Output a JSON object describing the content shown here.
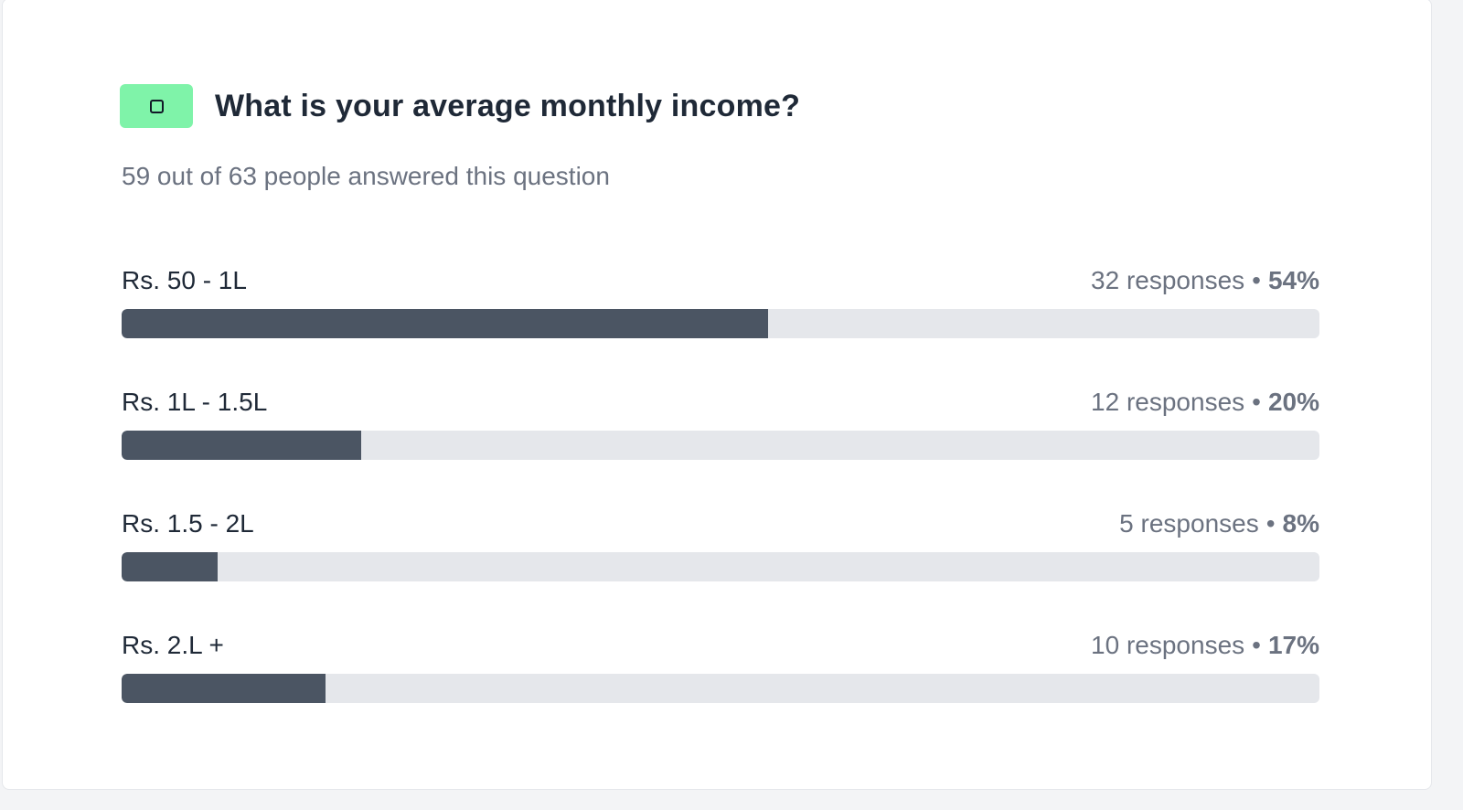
{
  "question": {
    "title": "What is your average monthly income?",
    "type_icon": "checkbox-icon",
    "summary": "59 out of 63 people answered this question",
    "accent_color": "#7ff3a9"
  },
  "options": [
    {
      "label": "Rs. 50 - 1L",
      "responses": "32 responses",
      "percent": "54%",
      "fill": 0.54
    },
    {
      "label": "Rs. 1L - 1.5L",
      "responses": "12 responses",
      "percent": "20%",
      "fill": 0.2
    },
    {
      "label": "Rs. 1.5 - 2L",
      "responses": "5 responses",
      "percent": "8%",
      "fill": 0.08
    },
    {
      "label": "Rs. 2.L +",
      "responses": "10 responses",
      "percent": "17%",
      "fill": 0.17
    }
  ],
  "colors": {
    "bar_fill": "#4b5563",
    "bar_track": "#e5e7eb"
  }
}
